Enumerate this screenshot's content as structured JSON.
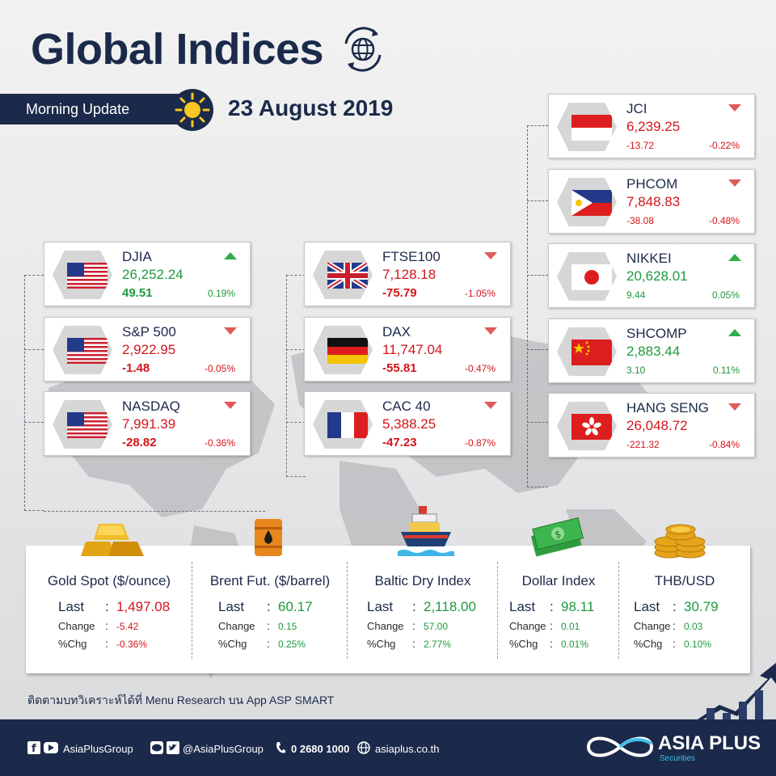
{
  "header": {
    "title": "Global Indices",
    "banner": "Morning Update",
    "date": "23 August 2019"
  },
  "indices": {
    "us": [
      {
        "name": "DJIA",
        "value": "26,252.24",
        "change": "49.51",
        "pct": "0.19%",
        "dir": "up",
        "flag": "us-flag-icon"
      },
      {
        "name": "S&P 500",
        "value": "2,922.95",
        "change": "-1.48",
        "pct": "-0.05%",
        "dir": "down",
        "flag": "us-flag-icon"
      },
      {
        "name": "NASDAQ",
        "value": "7,991.39",
        "change": "-28.82",
        "pct": "-0.36%",
        "dir": "down",
        "flag": "us-flag-icon"
      }
    ],
    "europe": [
      {
        "name": "FTSE100",
        "value": "7,128.18",
        "change": "-75.79",
        "pct": "-1.05%",
        "dir": "down",
        "flag": "uk-flag-icon"
      },
      {
        "name": "DAX",
        "value": "11,747.04",
        "change": "-55.81",
        "pct": "-0.47%",
        "dir": "down",
        "flag": "germany-flag-icon"
      },
      {
        "name": "CAC 40",
        "value": "5,388.25",
        "change": "-47.23",
        "pct": "-0.87%",
        "dir": "down",
        "flag": "france-flag-icon"
      }
    ],
    "asia": [
      {
        "name": "JCI",
        "value": "6,239.25",
        "change": "-13.72",
        "pct": "-0.22%",
        "dir": "down",
        "flag": "indonesia-flag-icon"
      },
      {
        "name": "PHCOM",
        "value": "7,848.83",
        "change": "-38.08",
        "pct": "-0.48%",
        "dir": "down",
        "flag": "philippines-flag-icon"
      },
      {
        "name": "NIKKEI",
        "value": "20,628.01",
        "change": "9.44",
        "pct": "0.05%",
        "dir": "up",
        "flag": "japan-flag-icon"
      },
      {
        "name": "SHCOMP",
        "value": "2,883.44",
        "change": "3.10",
        "pct": "0.11%",
        "dir": "up",
        "flag": "china-flag-icon"
      },
      {
        "name": "HANG SENG",
        "value": "26,048.72",
        "change": "-221.32",
        "pct": "-0.84%",
        "dir": "down",
        "flag": "hongkong-flag-icon"
      }
    ]
  },
  "commodities": {
    "labels": {
      "last": "Last",
      "change": "Change",
      "pct": "%Chg",
      "colon": ":"
    },
    "items": [
      {
        "title": "Gold Spot ($/ounce)",
        "last": "1,497.08",
        "change": "-5.42",
        "pct": "-0.36%",
        "dir": "down",
        "icon": "gold-bars-icon"
      },
      {
        "title": "Brent Fut. ($/barrel)",
        "last": "60.17",
        "change": "0.15",
        "pct": "0.25%",
        "dir": "up",
        "icon": "oil-barrel-icon"
      },
      {
        "title": "Baltic Dry Index",
        "last": "2,118.00",
        "change": "57.00",
        "pct": "2.77%",
        "dir": "up",
        "icon": "cargo-ship-icon"
      },
      {
        "title": "Dollar Index",
        "last": "98.11",
        "change": "0.01",
        "pct": "0.01%",
        "dir": "up",
        "icon": "dollar-bills-icon"
      },
      {
        "title": "THB/USD",
        "last": "30.79",
        "change": "0.03",
        "pct": "0.10%",
        "dir": "up",
        "icon": "coin-stack-icon"
      }
    ]
  },
  "footer": {
    "note": "ติดตามบทวิเคราะห์ได้ที่ Menu Research บน App ASP SMART",
    "social1": "AsiaPlusGroup",
    "social2": "@AsiaPlusGroup",
    "phone": "0 2680 1000",
    "website": "asiaplus.co.th",
    "brand": "ASIA PLUS",
    "brand_sub": "Securities"
  },
  "colors": {
    "navy": "#1b2a4a",
    "red": "#d3151b",
    "green": "#1f9a3c",
    "accent": "#40c0e8"
  }
}
